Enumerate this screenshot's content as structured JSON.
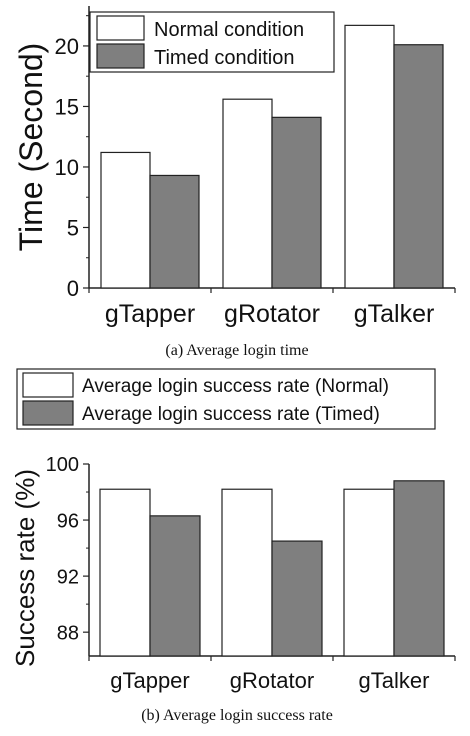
{
  "chart_data": [
    {
      "type": "bar",
      "categories": [
        "gTapper",
        "gRotator",
        "gTalker"
      ],
      "series": [
        {
          "name": "Normal condition",
          "values": [
            11.2,
            15.6,
            21.7
          ],
          "color": "#ffffff"
        },
        {
          "name": "Timed condition",
          "values": [
            9.3,
            14.1,
            20.1
          ],
          "color": "#7f7f7f"
        }
      ],
      "ylabel": "Time (Second)",
      "xlabel": "",
      "ylim": [
        0,
        23.3
      ],
      "yticks": [
        "0",
        "5",
        "10",
        "15",
        "20"
      ],
      "caption": "(a) Average login time",
      "legend_placement": "top-left"
    },
    {
      "type": "bar",
      "categories": [
        "gTapper",
        "gRotator",
        "gTalker"
      ],
      "series": [
        {
          "name": "Average login success rate (Normal)",
          "values": [
            98.2,
            98.2,
            98.2
          ],
          "color": "#ffffff"
        },
        {
          "name": "Average login success rate (Timed)",
          "values": [
            96.3,
            94.5,
            98.8
          ],
          "color": "#7f7f7f"
        }
      ],
      "ylabel": "Success rate (%)",
      "xlabel": "",
      "ylim": [
        86.3,
        100
      ],
      "yticks": [
        "88",
        "92",
        "96",
        "100"
      ],
      "caption": "(b) Average login success rate",
      "legend_placement": "above"
    }
  ]
}
